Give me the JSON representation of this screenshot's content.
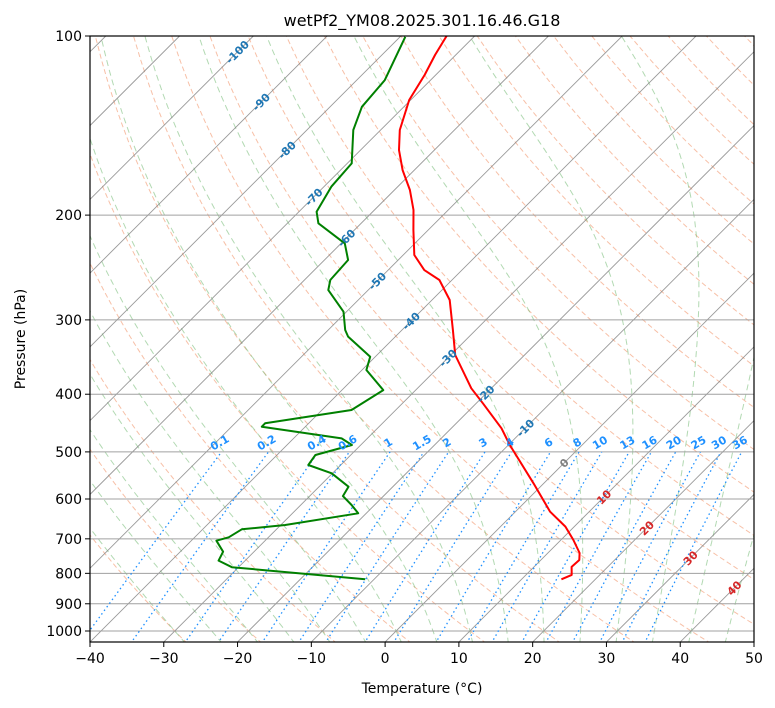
{
  "chart_data": {
    "type": "line",
    "subtype": "skew-t log-p",
    "title": "wetPf2_YM08.2025.301.16.46.G18",
    "xlabel": "Temperature (°C)",
    "ylabel": "Pressure (hPa)",
    "xlim": [
      -40,
      50
    ],
    "ylim": [
      1050,
      100
    ],
    "xticks": [
      -40,
      -30,
      -20,
      -10,
      0,
      10,
      20,
      30,
      40,
      50
    ],
    "xtick_labels": [
      "−40",
      "−30",
      "−20",
      "−10",
      "0",
      "10",
      "20",
      "30",
      "40",
      "50"
    ],
    "yticks": [
      100,
      200,
      300,
      400,
      500,
      600,
      700,
      800,
      900,
      1000
    ],
    "ytick_labels": [
      "100",
      "200",
      "300",
      "400",
      "500",
      "600",
      "700",
      "800",
      "900",
      "1000"
    ],
    "grid": true,
    "series": [
      {
        "name": "temperature",
        "color": "#ff0000",
        "pressure": [
          818.7,
          805,
          780.3,
          759.7,
          739.5,
          703.2,
          667.7,
          630.2,
          564.6,
          486.9,
          456.3,
          414.3,
          391,
          343.7,
          312,
          277.8,
          257.1,
          247.4,
          233.4,
          211.9,
          196.1,
          181.5,
          168,
          155.5,
          143.9,
          128.1,
          116.3,
          107.6,
          100
        ],
        "values": [
          15.4,
          16.2,
          15.1,
          15.2,
          14.3,
          11.7,
          8.8,
          4.7,
          -1.4,
          -9.8,
          -13.2,
          -19.1,
          -22.7,
          -29.4,
          -33.1,
          -37.6,
          -41.7,
          -45.1,
          -48.5,
          -52.0,
          -54.7,
          -57.9,
          -61.6,
          -64.8,
          -67.4,
          -70.2,
          -71.5,
          -72.8,
          -73.8
        ]
      },
      {
        "name": "dewpoint",
        "color": "#008000",
        "pressure": [
          818.7,
          781.2,
          761.6,
          735.6,
          705,
          695.8,
          674.6,
          663.4,
          634.1,
          614.2,
          593.2,
          572.2,
          543.3,
          526,
          506,
          486.9,
          474.5,
          453.6,
          447.7,
          425.2,
          393.6,
          364.2,
          345.9,
          320.1,
          312,
          290.7,
          267.3,
          257.1,
          237.9,
          223.1,
          206.4,
          197.4,
          179.2,
          163.7,
          143.9,
          131.5,
          118.6,
          100.3
        ],
        "values": [
          -11.2,
          -30.9,
          -33.6,
          -34.2,
          -36.6,
          -35.4,
          -34.7,
          -29.4,
          -21.1,
          -23.1,
          -25.5,
          -26.0,
          -30.1,
          -34.4,
          -34.8,
          -31.2,
          -33.5,
          -45.9,
          -45.9,
          -36.0,
          -34.4,
          -39.4,
          -40.7,
          -46.4,
          -47.7,
          -50.4,
          -55.4,
          -56.5,
          -56.8,
          -59.5,
          -65.8,
          -67.6,
          -69.0,
          -69.4,
          -73.7,
          -75.7,
          -76.2,
          -79.3
        ]
      }
    ],
    "isotherm_labels": [
      {
        "text": "-100",
        "value": -100,
        "color": "#1f77b4"
      },
      {
        "text": "-90",
        "value": -90,
        "color": "#1f77b4"
      },
      {
        "text": "-80",
        "value": -80,
        "color": "#1f77b4"
      },
      {
        "text": "-70",
        "value": -70,
        "color": "#1f77b4"
      },
      {
        "text": "-60",
        "value": -60,
        "color": "#1f77b4"
      },
      {
        "text": "-50",
        "value": -50,
        "color": "#1f77b4"
      },
      {
        "text": "-40",
        "value": -40,
        "color": "#1f77b4"
      },
      {
        "text": "-30",
        "value": -30,
        "color": "#1f77b4"
      },
      {
        "text": "-20",
        "value": -20,
        "color": "#1f77b4"
      },
      {
        "text": "-10",
        "value": -10,
        "color": "#1f77b4"
      },
      {
        "text": "0",
        "value": 0,
        "color": "#808080"
      },
      {
        "text": "10",
        "value": 10,
        "color": "#d62728"
      },
      {
        "text": "20",
        "value": 20,
        "color": "#d62728"
      },
      {
        "text": "30",
        "value": 30,
        "color": "#d62728"
      },
      {
        "text": "40",
        "value": 40,
        "color": "#d62728"
      }
    ],
    "mixing_ratio_labels": [
      "0.1",
      "0.2",
      "0.4",
      "0.6",
      "1",
      "1.5",
      "2",
      "3",
      "4",
      "6",
      "8",
      "10",
      "13",
      "16",
      "20",
      "25",
      "30",
      "36"
    ],
    "mixing_ratio_values": [
      0.1,
      0.2,
      0.4,
      0.6,
      1,
      1.5,
      2,
      3,
      4,
      6,
      8,
      10,
      13,
      16,
      20,
      25,
      30,
      36
    ],
    "colors": {
      "isotherm": "#808080",
      "dry_adiabat": "#f4a582",
      "moist_adiabat": "#7fbf7f",
      "mixing_ratio": "#1e90ff"
    }
  }
}
